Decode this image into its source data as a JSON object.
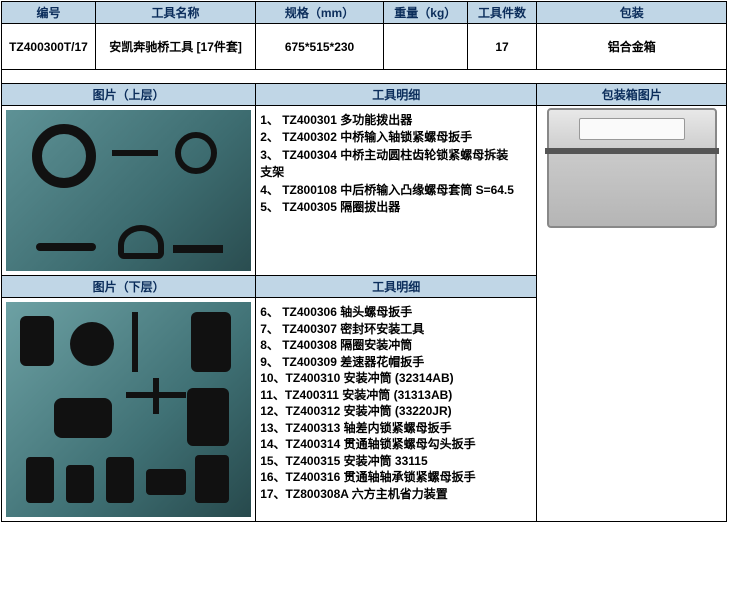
{
  "headers_top": {
    "col1": "编号",
    "col2": "工具名称",
    "col3": "规格（mm）",
    "col4": "重量（kg）",
    "col5": "工具件数",
    "col6": "包装"
  },
  "row1": {
    "id": "TZ400300T/17",
    "name": "安凯奔驰桥工具 [17件套]",
    "spec": "675*515*230",
    "weight": "",
    "count": "17",
    "pack": "铝合金箱"
  },
  "headers_mid": {
    "img_upper": "图片（上层）",
    "detail": "工具明细",
    "pkg_img": "包装箱图片",
    "img_lower": "图片（下层）"
  },
  "details_upper": [
    "1、 TZ400301 多功能拨出器",
    "2、 TZ400302 中桥输入轴锁紧螺母扳手",
    "3、 TZ400304 中桥主动圆柱齿轮锁紧螺母拆装",
    "        支架",
    "4、 TZ800108 中后桥输入凸缘螺母套筒 S=64.5",
    "5、 TZ400305 隔圈拔出器"
  ],
  "details_lower": [
    "6、 TZ400306   轴头螺母扳手",
    "7、 TZ400307   密封环安装工具",
    "8、 TZ400308   隔圈安装冲筒",
    "9、 TZ400309   差速器花帽扳手",
    "10、TZ400310 安装冲筒 (32314AB)",
    "11、TZ400311 安装冲筒 (31313AB)",
    "12、TZ400312 安装冲筒 (33220JR)",
    "13、TZ400313 轴差内锁紧螺母扳手",
    "14、TZ400314 贯通轴锁紧螺母勾头扳手",
    "15、TZ400315 安装冲筒 33115",
    "16、TZ400316 贯通轴轴承锁紧螺母扳手",
    "17、TZ800308A 六方主机省力装置"
  ]
}
